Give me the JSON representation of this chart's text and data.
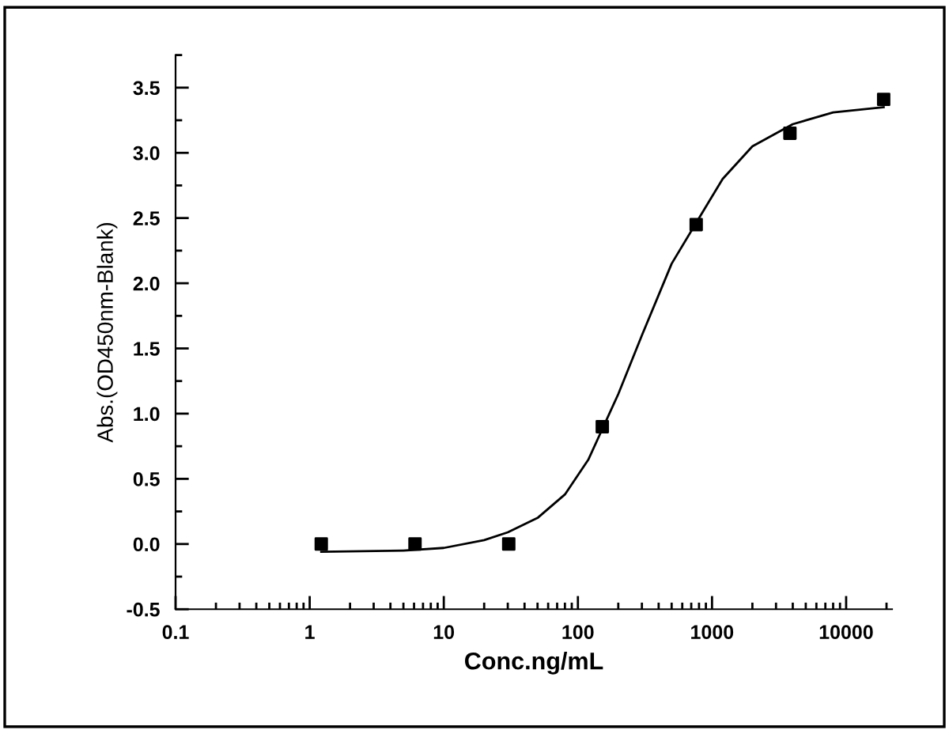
{
  "chart_data": {
    "type": "scatter",
    "xlabel": "Conc.ng/mL",
    "ylabel": "Abs.(OD450nm-Blank)",
    "log": "x",
    "marker": "square",
    "grid": false,
    "legend": false,
    "xlim": [
      0.1,
      22000
    ],
    "xticks": [
      0.1,
      1,
      10,
      100,
      1000,
      10000
    ],
    "ylim": [
      -0.5,
      3.75
    ],
    "yticks": [
      -0.5,
      {
        "value": 0,
        "label": "0.0"
      },
      0.5,
      {
        "value": 1,
        "label": "1.0"
      },
      1.5,
      {
        "value": 2,
        "label": "2.0"
      },
      2.5,
      {
        "value": 3,
        "label": "3.0"
      },
      3.5
    ],
    "series": [
      {
        "color": "#000000",
        "x": [
          1.22,
          6.1,
          30.5,
          152,
          762,
          3810,
          19050
        ],
        "values": [
          0.0,
          0.0,
          0.0,
          0.9,
          2.45,
          3.15,
          3.41
        ]
      },
      {
        "type": "line",
        "color": "#000000",
        "marker": "none",
        "line_style": "solid",
        "x": [
          1.22,
          5,
          10,
          20,
          30,
          50,
          80,
          120,
          200,
          300,
          500,
          800,
          1200,
          2000,
          4000,
          8000,
          19050
        ],
        "values": [
          -0.06,
          -0.05,
          -0.03,
          0.03,
          0.09,
          0.2,
          0.38,
          0.65,
          1.15,
          1.6,
          2.15,
          2.5,
          2.8,
          3.05,
          3.22,
          3.31,
          3.35
        ]
      }
    ]
  }
}
